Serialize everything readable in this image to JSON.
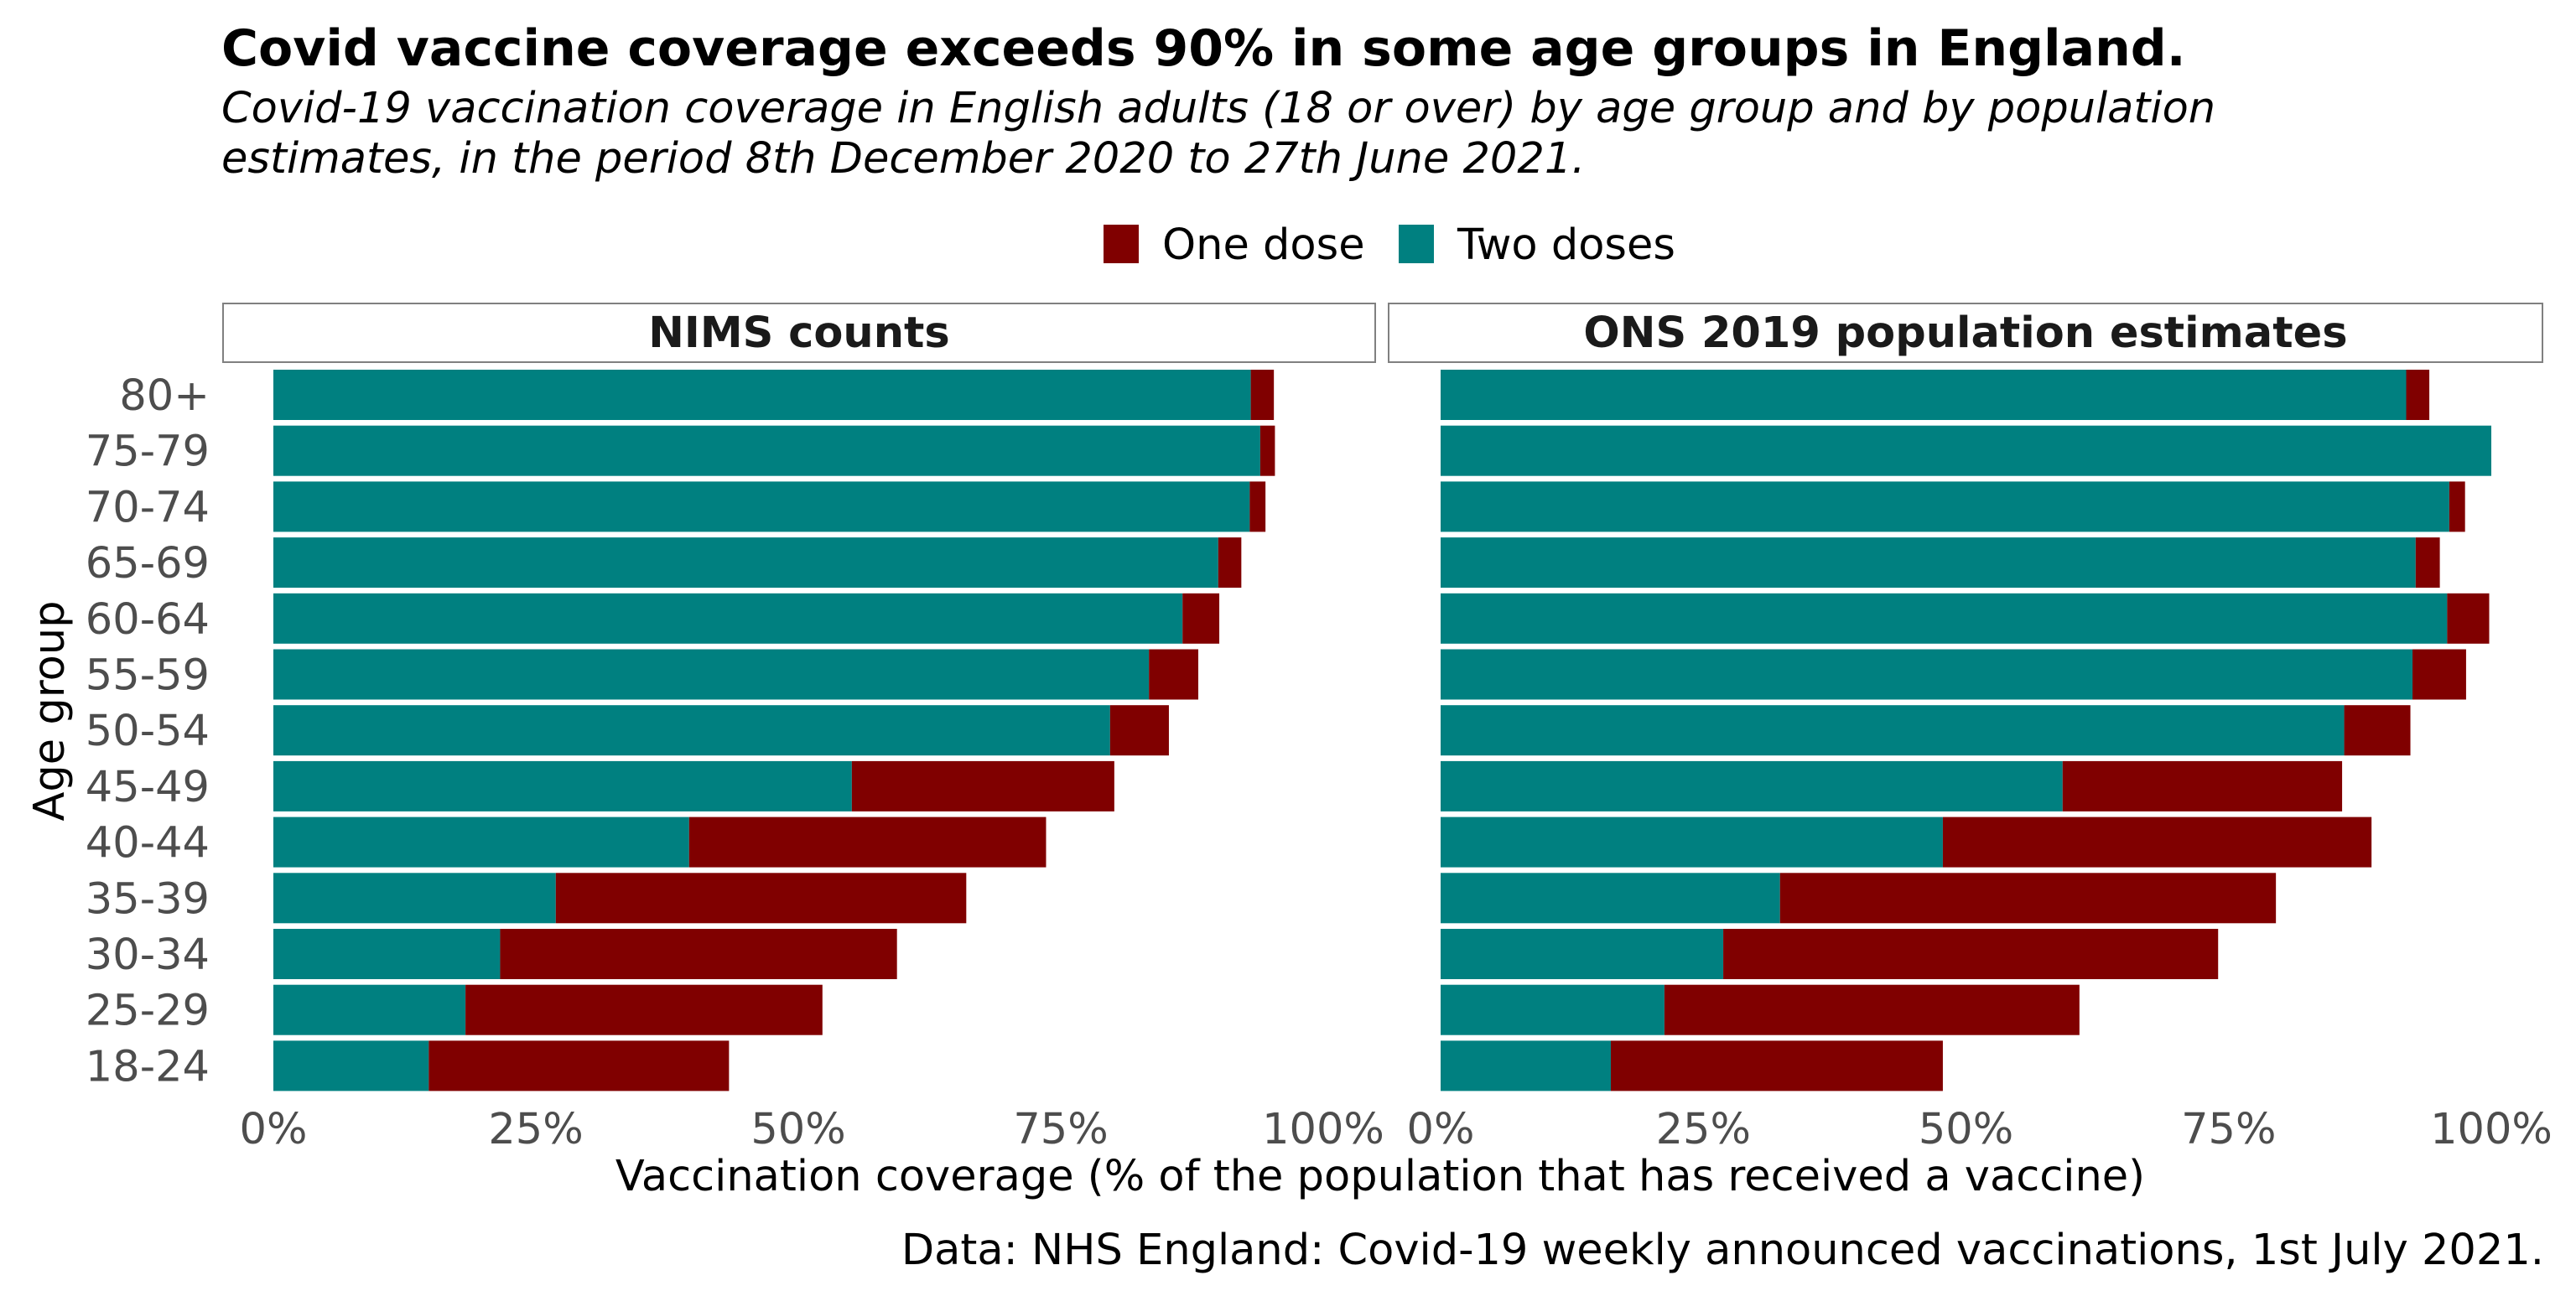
{
  "title": "Covid vaccine coverage exceeds 90% in some age groups in England.",
  "subtitle_lines": [
    "Covid-19 vaccination coverage in English adults (18 or over) by age group and by population",
    "estimates, in the period 8th December 2020 to 27th June 2021."
  ],
  "caption": "Data: NHS England: Covid-19 weekly announced vaccinations, 1st July 2021.",
  "colors": {
    "one_dose": "#800000",
    "two_doses": "#008080",
    "text": "#000000",
    "tick_text": "#4d4d4d",
    "strip_border": "#808080"
  },
  "chart_data": {
    "type": "bar",
    "orientation": "horizontal",
    "stacked": true,
    "xlabel": "Vaccination coverage (% of the population that has received a vaccine)",
    "ylabel": "Age group",
    "xlim": [
      0,
      100
    ],
    "x_ticks": [
      "0%",
      "25%",
      "50%",
      "75%",
      "100%"
    ],
    "x_tick_values": [
      0,
      25,
      50,
      75,
      100
    ],
    "legend": {
      "position": "top",
      "entries": [
        {
          "key": "one_dose",
          "label": "One dose"
        },
        {
          "key": "two_doses",
          "label": "Two doses"
        }
      ]
    },
    "grid": false,
    "categories": [
      "80+",
      "75-79",
      "70-74",
      "65-69",
      "60-64",
      "55-59",
      "50-54",
      "45-49",
      "40-44",
      "35-39",
      "30-34",
      "25-29",
      "18-24"
    ],
    "panels": [
      {
        "name": "NIMS counts",
        "series": [
          {
            "name": "Two doses",
            "key": "two_doses",
            "values": [
              93.1,
              94.0,
              93.0,
              90.0,
              86.6,
              83.4,
              79.7,
              55.1,
              39.6,
              26.9,
              21.6,
              18.3,
              14.8
            ]
          },
          {
            "name": "One dose",
            "key": "one_dose",
            "values": [
              2.2,
              1.4,
              1.5,
              2.2,
              3.5,
              4.7,
              5.6,
              25.0,
              34.0,
              39.1,
              37.8,
              34.0,
              28.6
            ]
          }
        ]
      },
      {
        "name": "ONS 2019 population estimates",
        "series": [
          {
            "name": "Two doses",
            "key": "two_doses",
            "values": [
              91.9,
              100.0,
              96.0,
              92.8,
              95.8,
              92.5,
              86.0,
              59.2,
              47.8,
              32.3,
              26.9,
              21.3,
              16.2
            ]
          },
          {
            "name": "One dose",
            "key": "one_dose",
            "values": [
              2.2,
              0.0,
              1.5,
              2.3,
              4.0,
              5.1,
              6.3,
              26.6,
              40.8,
              47.2,
              47.1,
              39.5,
              31.6
            ]
          }
        ]
      }
    ]
  }
}
